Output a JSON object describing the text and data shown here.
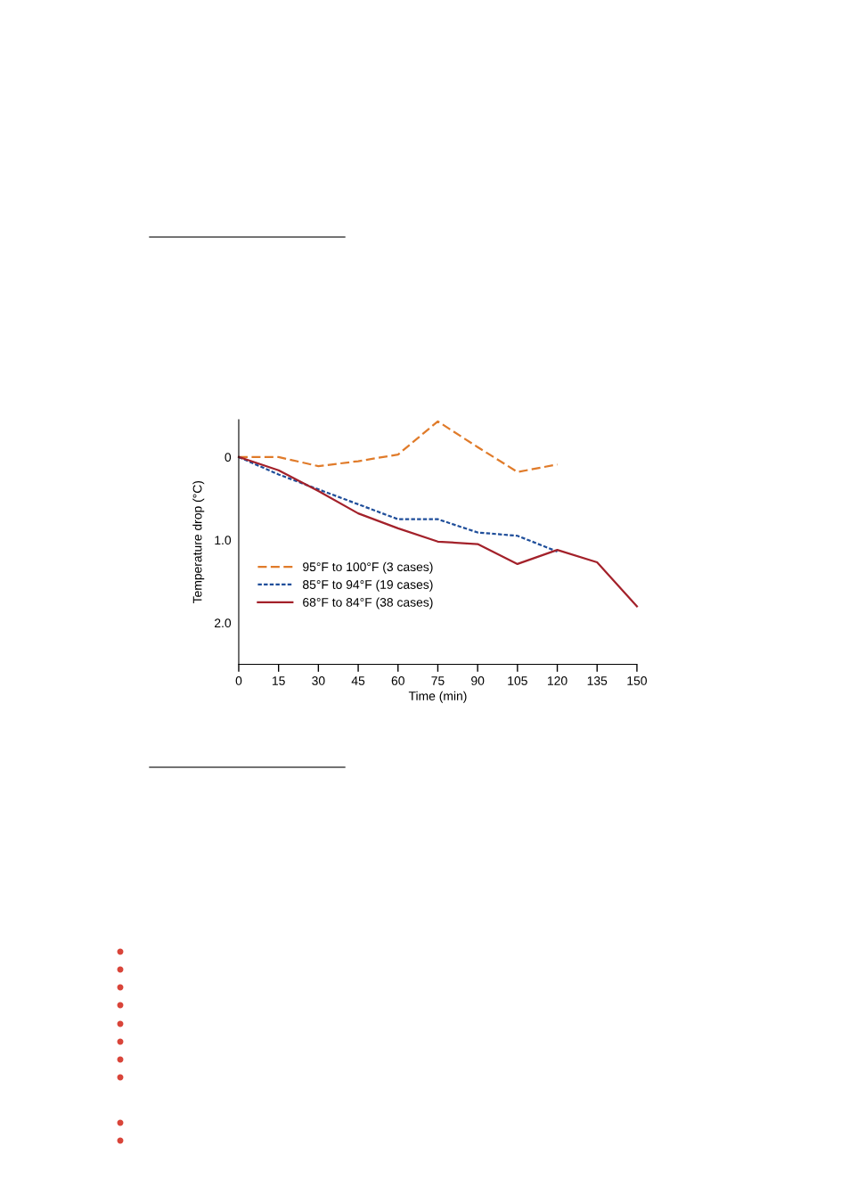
{
  "chart_data": {
    "type": "line",
    "xlabel": "Time (min)",
    "ylabel": "Temperature drop (°C)",
    "x": [
      0,
      15,
      30,
      45,
      60,
      75,
      90,
      105,
      120,
      135,
      150
    ],
    "series": [
      {
        "name": "95°F to 100°F (3 cases)",
        "color": "#e07b2a",
        "line_style": "dashed",
        "values": [
          0,
          0,
          0.11,
          0.05,
          -0.03,
          -0.43,
          -0.12,
          0.18,
          0.09,
          null,
          null
        ]
      },
      {
        "name": "85°F to 94°F (19 cases)",
        "color": "#1f4e9a",
        "line_style": "dotted",
        "values": [
          0,
          0.21,
          0.39,
          0.57,
          0.75,
          0.75,
          0.91,
          0.95,
          1.14,
          null,
          null
        ]
      },
      {
        "name": "68°F to 84°F (38 cases)",
        "color": "#a3212a",
        "line_style": "solid",
        "values": [
          0,
          0.16,
          0.41,
          0.68,
          0.86,
          1.02,
          1.05,
          1.29,
          1.12,
          1.27,
          1.8
        ]
      }
    ],
    "xlim": [
      0,
      150
    ],
    "xticks": [
      0,
      15,
      30,
      45,
      60,
      75,
      90,
      105,
      120,
      135,
      150
    ],
    "ylim": [
      2.5,
      -0.45
    ],
    "yticks": [
      0,
      {
        "value": 1,
        "label": "1.0"
      },
      {
        "value": 2,
        "label": "2.0"
      }
    ],
    "grid": false,
    "legend": "bottom left",
    "marker": "none"
  }
}
